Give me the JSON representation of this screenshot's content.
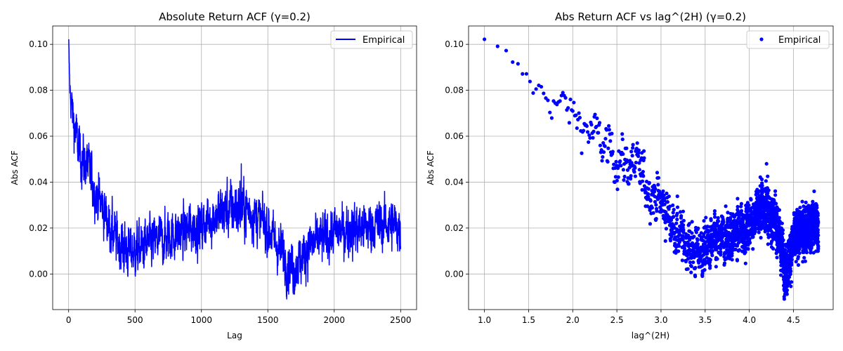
{
  "chart_data": [
    {
      "type": "line",
      "title": "Absolute Return ACF (γ=0.2)",
      "xlabel": "Lag",
      "ylabel": "Abs ACF",
      "xlim": [
        -120,
        2620
      ],
      "ylim": [
        -0.0155,
        0.108
      ],
      "xticks": [
        0,
        500,
        1000,
        1500,
        2000,
        2500
      ],
      "xtick_labels": [
        "0",
        "500",
        "1000",
        "1500",
        "2000",
        "2500"
      ],
      "yticks": [
        0.0,
        0.02,
        0.04,
        0.06,
        0.08,
        0.1
      ],
      "ytick_labels": [
        "0.00",
        "0.02",
        "0.04",
        "0.06",
        "0.08",
        "0.10"
      ],
      "grid": true,
      "legend": {
        "position": "top-right",
        "entries": [
          "Empirical"
        ]
      },
      "color": "#0000ff",
      "series": [
        {
          "name": "Empirical",
          "trend": {
            "x": [
              1,
              5,
              10,
              20,
              30,
              50,
              75,
              100,
              150,
              200,
              250,
              300,
              350,
              400,
              450,
              500,
              600,
              700,
              800,
              900,
              1000,
              1100,
              1200,
              1300,
              1400,
              1500,
              1550,
              1600,
              1650,
              1700,
              1750,
              1800,
              1900,
              2000,
              2100,
              2200,
              2300,
              2400,
              2500
            ],
            "y": [
              0.1,
              0.088,
              0.08,
              0.075,
              0.07,
              0.062,
              0.055,
              0.05,
              0.046,
              0.036,
              0.03,
              0.022,
              0.016,
              0.012,
              0.01,
              0.01,
              0.013,
              0.015,
              0.017,
              0.019,
              0.021,
              0.025,
              0.028,
              0.029,
              0.026,
              0.02,
              0.014,
              0.01,
              0.004,
              0.003,
              0.006,
              0.012,
              0.015,
              0.018,
              0.019,
              0.02,
              0.021,
              0.022,
              0.02
            ],
            "noise_amplitude": [
              0.002,
              0.003,
              0.004,
              0.005,
              0.005,
              0.006,
              0.006,
              0.006,
              0.006,
              0.006,
              0.006,
              0.006,
              0.006,
              0.006,
              0.006,
              0.006,
              0.006,
              0.006,
              0.006,
              0.006,
              0.006,
              0.006,
              0.007,
              0.007,
              0.006,
              0.006,
              0.006,
              0.006,
              0.006,
              0.006,
              0.006,
              0.006,
              0.006,
              0.006,
              0.006,
              0.006,
              0.006,
              0.006,
              0.006
            ]
          },
          "point_count": 2500
        }
      ]
    },
    {
      "type": "scatter",
      "title": "Abs Return ACF vs lag^(2H) (γ=0.2)",
      "xlabel": "lag^(2H)",
      "ylabel": "Abs ACF",
      "xlim": [
        0.82,
        4.95
      ],
      "ylim": [
        -0.0155,
        0.108
      ],
      "xticks": [
        1.0,
        1.5,
        2.0,
        2.5,
        3.0,
        3.5,
        4.0,
        4.5
      ],
      "xtick_labels": [
        "1.0",
        "1.5",
        "2.0",
        "2.5",
        "3.0",
        "3.5",
        "4.0",
        "4.5"
      ],
      "yticks": [
        0.0,
        0.02,
        0.04,
        0.06,
        0.08,
        0.1
      ],
      "ytick_labels": [
        "0.00",
        "0.02",
        "0.04",
        "0.06",
        "0.08",
        "0.10"
      ],
      "grid": true,
      "legend": {
        "position": "top-right",
        "entries": [
          "Empirical"
        ]
      },
      "color": "#0000ff",
      "transform": {
        "exponent_2H": 0.2
      },
      "series": [
        {
          "name": "Empirical",
          "source": "same data as left panel, x = lag^0.2"
        }
      ]
    }
  ]
}
